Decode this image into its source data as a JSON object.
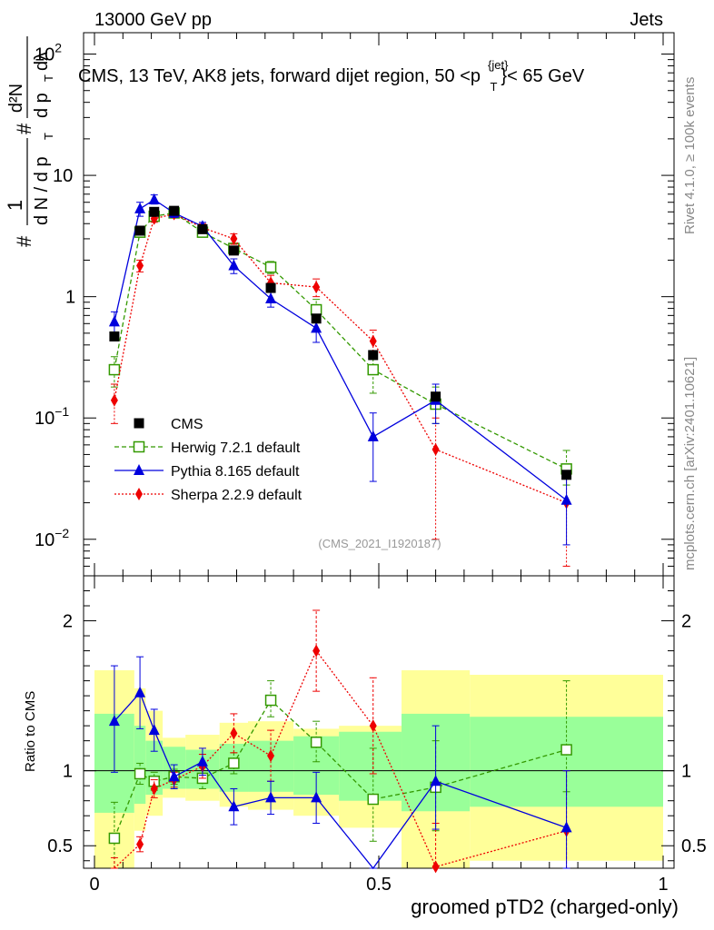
{
  "header": {
    "left": "13000 GeV pp",
    "right": "Jets",
    "title": "CMS, 13 TeV, AK8 jets, forward dijet region, 50 <p",
    "title_sup": "{jet}",
    "title_sub": "T",
    "title_end": "}< 65 GeV"
  },
  "side": {
    "rivet": "Rivet 4.1.0, ≥ 100k events",
    "mcplots": "mcplots.cern.ch [arXiv:2401.10621]"
  },
  "analysis_id": "(CMS_2021_I1920187)",
  "ylabel_main": {
    "hash1": "#",
    "one": "1",
    "dN": "d N / d p",
    "T1": "T",
    "hash2": "#",
    "d2N": "d²N",
    "dpTdl": "d p",
    "T2": "T",
    "dl": "dλ"
  },
  "ratio_label": "Ratio to CMS",
  "colors": {
    "cms": "#000000",
    "herwig": "#339900",
    "pythia": "#0000dd",
    "sherpa": "#ee0000",
    "band_inner": "#99ff99",
    "band_outer": "#ffff99"
  },
  "chart_data": {
    "type": "scatter",
    "xlabel": "groomed pTD2 (charged-only)",
    "xlim": [
      0,
      1
    ],
    "x_ticks": [
      "0",
      "0.5",
      "1"
    ],
    "main": {
      "yscale": "log",
      "ylim": [
        0.005,
        150
      ],
      "y_ticks": [
        {
          "v": 0.01,
          "base": "10",
          "exp": "−2"
        },
        {
          "v": 0.1,
          "base": "10",
          "exp": "−1"
        },
        {
          "v": 1,
          "base": "1",
          "exp": ""
        },
        {
          "v": 10,
          "base": "10",
          "exp": ""
        },
        {
          "v": 100,
          "base": "10",
          "exp": "2"
        }
      ]
    },
    "ratio": {
      "ylim": [
        0.35,
        2.3
      ],
      "y_ticks": [
        "0.5",
        "1",
        "2"
      ],
      "y_tick_values": [
        0.5,
        1,
        2
      ]
    },
    "bin_edges": [
      0,
      0.07,
      0.09,
      0.12,
      0.16,
      0.22,
      0.27,
      0.35,
      0.43,
      0.54,
      0.66,
      1.0
    ],
    "band_inner": [
      [
        0.72,
        1.38
      ],
      [
        0.78,
        1.3
      ],
      [
        0.84,
        1.2
      ],
      [
        0.88,
        1.16
      ],
      [
        0.88,
        1.14
      ],
      [
        0.86,
        1.18
      ],
      [
        0.86,
        1.2
      ],
      [
        0.84,
        1.23
      ],
      [
        0.8,
        1.26
      ],
      [
        0.73,
        1.38
      ],
      [
        0.76,
        1.36
      ]
    ],
    "band_outer": [
      [
        0.0,
        1.67
      ],
      [
        0.6,
        1.55
      ],
      [
        0.7,
        1.4
      ],
      [
        0.82,
        1.22
      ],
      [
        0.8,
        1.24
      ],
      [
        0.76,
        1.32
      ],
      [
        0.74,
        1.33
      ],
      [
        0.7,
        1.28
      ],
      [
        0.62,
        1.3
      ],
      [
        0.0,
        1.67
      ],
      [
        0.4,
        1.64
      ]
    ],
    "legend": [
      {
        "key": "cms",
        "label": "CMS"
      },
      {
        "key": "herwig",
        "label": "Herwig 7.2.1 default"
      },
      {
        "key": "pythia",
        "label": "Pythia 8.165 default"
      },
      {
        "key": "sherpa",
        "label": "Sherpa 2.2.9 default"
      }
    ],
    "series": [
      {
        "name": "CMS",
        "key": "cms",
        "marker": "square-filled",
        "line": "none",
        "x": [
          0.035,
          0.08,
          0.105,
          0.14,
          0.19,
          0.245,
          0.31,
          0.39,
          0.49,
          0.6,
          0.83
        ],
        "y": [
          0.47,
          3.5,
          5.0,
          5.1,
          3.6,
          2.4,
          1.18,
          0.66,
          0.33,
          0.15,
          0.034
        ],
        "yerr": [
          0.03,
          0.2,
          0.2,
          0.2,
          0.15,
          0.1,
          0.06,
          0.04,
          0.02,
          0.01,
          0.003
        ]
      },
      {
        "name": "Herwig 7.2.1 default",
        "key": "herwig",
        "marker": "square-open",
        "line": "dashed",
        "x": [
          0.035,
          0.08,
          0.105,
          0.14,
          0.19,
          0.245,
          0.31,
          0.39,
          0.49,
          0.6,
          0.83
        ],
        "y": [
          0.25,
          3.4,
          4.6,
          4.9,
          3.4,
          2.5,
          1.75,
          0.78,
          0.25,
          0.13,
          0.038
        ],
        "ylo": [
          0.18,
          3.1,
          4.3,
          4.6,
          3.2,
          2.3,
          1.55,
          0.62,
          0.16,
          0.09,
          0.028
        ],
        "yhi": [
          0.32,
          3.7,
          4.9,
          5.2,
          3.6,
          2.7,
          1.95,
          0.95,
          0.35,
          0.18,
          0.054
        ],
        "ratio": [
          0.55,
          0.98,
          0.93,
          0.96,
          0.95,
          1.05,
          1.47,
          1.19,
          0.81,
          0.89,
          1.14
        ],
        "ratio_lo": [
          0.35,
          0.91,
          0.87,
          0.91,
          0.88,
          0.98,
          1.36,
          1.06,
          0.53,
          0.6,
          0.86
        ],
        "ratio_hi": [
          0.79,
          1.05,
          0.99,
          1.01,
          1.02,
          1.12,
          1.6,
          1.33,
          1.15,
          1.2,
          1.6
        ]
      },
      {
        "name": "Pythia 8.165 default",
        "key": "pythia",
        "marker": "triangle-filled",
        "line": "solid",
        "x": [
          0.035,
          0.08,
          0.105,
          0.14,
          0.19,
          0.245,
          0.31,
          0.39,
          0.49,
          0.6,
          0.83
        ],
        "y": [
          0.62,
          5.3,
          6.3,
          4.9,
          3.8,
          1.8,
          0.96,
          0.55,
          0.07,
          0.14,
          0.021
        ],
        "ylo": [
          0.5,
          4.6,
          5.8,
          4.5,
          3.5,
          1.55,
          0.82,
          0.42,
          0.03,
          0.09,
          0.009
        ],
        "yhi": [
          0.75,
          6.0,
          6.9,
          5.3,
          4.1,
          2.05,
          1.1,
          0.68,
          0.11,
          0.19,
          0.033
        ],
        "ratio": [
          1.33,
          1.52,
          1.27,
          0.96,
          1.06,
          0.76,
          0.82,
          0.82,
          0.2,
          0.93,
          0.62
        ],
        "ratio_lo": [
          0.99,
          1.28,
          1.13,
          0.88,
          0.97,
          0.64,
          0.71,
          0.65,
          0.1,
          0.61,
          0.35
        ],
        "ratio_hi": [
          1.7,
          1.76,
          1.41,
          1.04,
          1.15,
          0.88,
          0.93,
          0.99,
          0.3,
          1.3,
          1.0
        ]
      },
      {
        "name": "Sherpa 2.2.9 default",
        "key": "sherpa",
        "marker": "diamond-filled",
        "line": "dotted",
        "x": [
          0.035,
          0.08,
          0.105,
          0.14,
          0.19,
          0.245,
          0.31,
          0.39,
          0.49,
          0.6,
          0.83
        ],
        "y": [
          0.14,
          1.8,
          4.4,
          4.8,
          3.7,
          3.0,
          1.3,
          1.2,
          0.43,
          0.055,
          0.02
        ],
        "ylo": [
          0.09,
          1.6,
          4.1,
          4.5,
          3.4,
          2.7,
          1.1,
          1.0,
          0.33,
          0.01,
          0.006
        ],
        "yhi": [
          0.19,
          2.0,
          4.7,
          5.1,
          4.0,
          3.3,
          1.5,
          1.4,
          0.53,
          0.1,
          0.034
        ],
        "ratio": [
          0.3,
          0.51,
          0.88,
          0.94,
          1.03,
          1.25,
          1.1,
          1.8,
          1.3,
          0.36,
          0.6
        ],
        "ratio_lo": [
          0.18,
          0.46,
          0.82,
          0.89,
          0.95,
          1.12,
          0.93,
          1.53,
          0.98,
          0.07,
          0.18
        ],
        "ratio_hi": [
          0.42,
          0.56,
          0.94,
          0.99,
          1.11,
          1.38,
          1.27,
          2.07,
          1.62,
          0.65,
          1.0
        ]
      }
    ]
  }
}
